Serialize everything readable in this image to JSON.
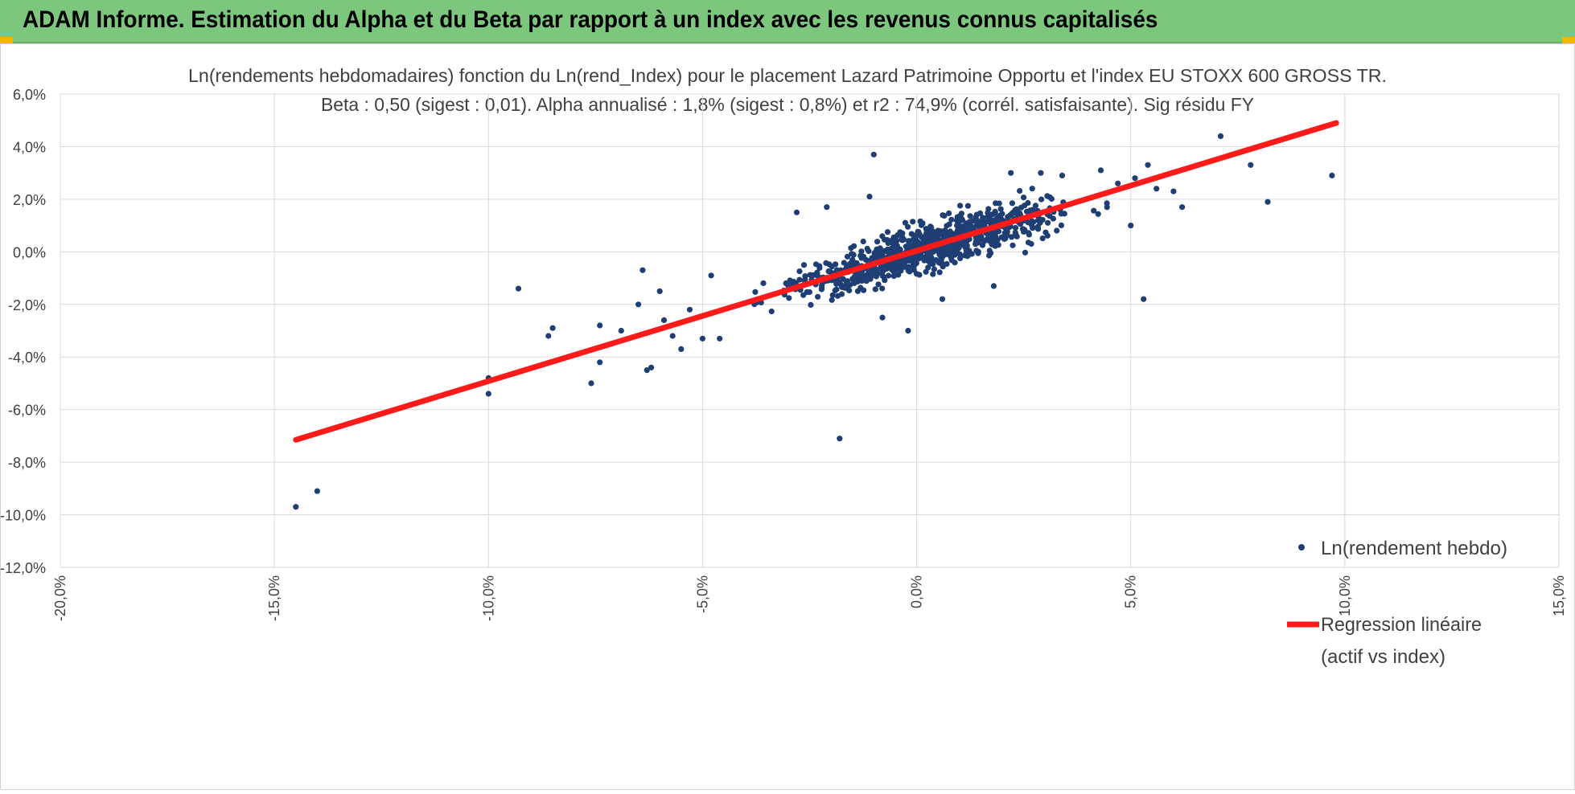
{
  "banner": {
    "title": "ADAM Informe. Estimation du Alpha et du Beta par rapport à un index avec les revenus connus capitalisés"
  },
  "colors": {
    "banner_bg": "#7dc67d",
    "points": "#1f3e74",
    "regression": "#ff1a1a",
    "grid": "#d9d9d9",
    "corner_accent": "#f2b705"
  },
  "chart_data": {
    "type": "scatter",
    "title_line1": "Ln(rendements hebdomadaires) fonction du Ln(rend_Index) pour le placement Lazard Patrimoine Opportu et l'index EU STOXX 600 GROSS TR.",
    "title_line2": "Beta : 0,50 (sigest : 0,01).  Alpha annualisé : 1,8% (sigest : 0,8%) et r2 : 74,9% (corrél. satisfaisante). Sig résidu FY",
    "xlim": [
      -20,
      15
    ],
    "ylim": [
      -12,
      6
    ],
    "x_ticks": [
      -20,
      -15,
      -10,
      -5,
      0,
      5,
      10,
      15
    ],
    "y_ticks": [
      -12,
      -10,
      -8,
      -6,
      -4,
      -2,
      0,
      2,
      4,
      6
    ],
    "x_tick_labels": [
      "-20,0%",
      "-15,0%",
      "-10,0%",
      "-5,0%",
      "0,0%",
      "5,0%",
      "10,0%",
      "15,0%"
    ],
    "y_tick_labels": [
      "-12,0%",
      "-10,0%",
      "-8,0%",
      "-6,0%",
      "-4,0%",
      "-2,0%",
      "0,0%",
      "2,0%",
      "4,0%",
      "6,0%"
    ],
    "grid": true,
    "legend_position": "right",
    "series": [
      {
        "name": "Ln(rendement hebdo)",
        "kind": "scatter",
        "outliers": [
          [
            -14.5,
            -9.7
          ],
          [
            -14.0,
            -9.1
          ],
          [
            -10.0,
            -4.8
          ],
          [
            -10.0,
            -5.4
          ],
          [
            -9.3,
            -1.4
          ],
          [
            -8.5,
            -2.9
          ],
          [
            -8.6,
            -3.2
          ],
          [
            -7.6,
            -5.0
          ],
          [
            -7.4,
            -4.2
          ],
          [
            -7.4,
            -2.8
          ],
          [
            -6.9,
            -3.0
          ],
          [
            -6.5,
            -2.0
          ],
          [
            -6.4,
            -0.7
          ],
          [
            -6.3,
            -4.5
          ],
          [
            -6.2,
            -4.4
          ],
          [
            -6.0,
            -1.5
          ],
          [
            -5.9,
            -2.6
          ],
          [
            -5.7,
            -3.2
          ],
          [
            -5.5,
            -3.7
          ],
          [
            -5.3,
            -2.2
          ],
          [
            -5.0,
            -3.3
          ],
          [
            -4.8,
            -0.9
          ],
          [
            -4.6,
            -3.3
          ],
          [
            -2.8,
            1.5
          ],
          [
            -2.1,
            1.7
          ],
          [
            -1.8,
            -7.1
          ],
          [
            -1.1,
            2.1
          ],
          [
            -1.0,
            3.7
          ],
          [
            -0.8,
            -2.5
          ],
          [
            -0.2,
            -3.0
          ],
          [
            0.6,
            -1.8
          ],
          [
            1.8,
            -1.3
          ],
          [
            2.2,
            3.0
          ],
          [
            2.9,
            3.0
          ],
          [
            3.4,
            2.9
          ],
          [
            4.3,
            3.1
          ],
          [
            4.7,
            2.6
          ],
          [
            5.0,
            1.0
          ],
          [
            5.1,
            2.8
          ],
          [
            5.3,
            -1.8
          ],
          [
            5.4,
            3.3
          ],
          [
            5.6,
            2.4
          ],
          [
            6.0,
            2.3
          ],
          [
            6.2,
            1.7
          ],
          [
            7.1,
            4.4
          ],
          [
            7.8,
            3.3
          ],
          [
            8.2,
            1.9
          ],
          [
            9.7,
            2.9
          ]
        ],
        "cluster": {
          "approx_count": 900,
          "beta": 0.5,
          "intercept": 0.035,
          "residual_sd": 0.42,
          "x_center": 0.3,
          "x_sd": 1.5
        }
      },
      {
        "name": "Regression linéaire\n(actif vs index)",
        "kind": "line",
        "x": [
          -14.5,
          9.8
        ],
        "y": [
          -7.15,
          4.9
        ]
      }
    ],
    "legend": [
      {
        "label": "Ln(rendement hebdo)"
      },
      {
        "label_line1": "Regression linéaire",
        "label_line2": "(actif vs index)"
      }
    ]
  }
}
